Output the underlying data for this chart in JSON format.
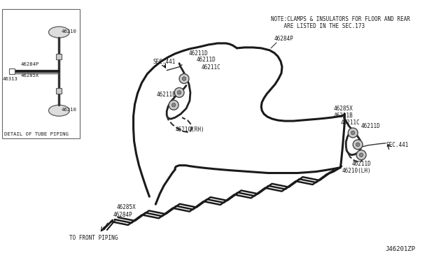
{
  "bg_color": "#ffffff",
  "line_color": "#1a1a1a",
  "title": "J46201ZP",
  "note_line1": "NOTE:CLAMPS & INSULATORS FOR FLOOR AND REAR",
  "note_line2": "    ARE LISTED IN THE SEC.173",
  "detail_label": "DETAIL OF TUBE PIPING",
  "front_piping_label": "TO FRONT PIPING",
  "fs_label": 5.8,
  "fs_small": 5.2
}
